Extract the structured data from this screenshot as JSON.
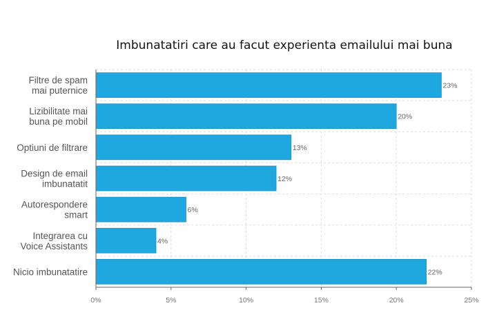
{
  "chart_data": {
    "type": "bar",
    "orientation": "horizontal",
    "title": "Imbunatatiri care au facut experienta emailului mai buna",
    "categories": [
      [
        "Filtre de spam",
        "mai puternice"
      ],
      [
        "Lizibilitate mai",
        "buna pe mobil"
      ],
      [
        "Optiuni de filtrare"
      ],
      [
        "Design de email",
        "imbunatatit"
      ],
      [
        "Autorespondere",
        "smart"
      ],
      [
        "Integrarea cu",
        "Voice Assistants"
      ],
      [
        "Nicio imbunatatire"
      ]
    ],
    "values": [
      23,
      20,
      13,
      12,
      6,
      4,
      22
    ],
    "value_labels": [
      "23%",
      "20%",
      "13%",
      "12%",
      "6%",
      "4%",
      "22%"
    ],
    "xlim": [
      0,
      25
    ],
    "x_ticks": [
      0,
      5,
      10,
      15,
      20,
      25
    ],
    "x_tick_labels": [
      "0%",
      "5%",
      "10%",
      "15%",
      "20%",
      "25%"
    ],
    "grid": true,
    "legend": "none",
    "colors": {
      "bar": "#1fa8df",
      "grid": "#dddddd",
      "axis": "#666666"
    }
  }
}
